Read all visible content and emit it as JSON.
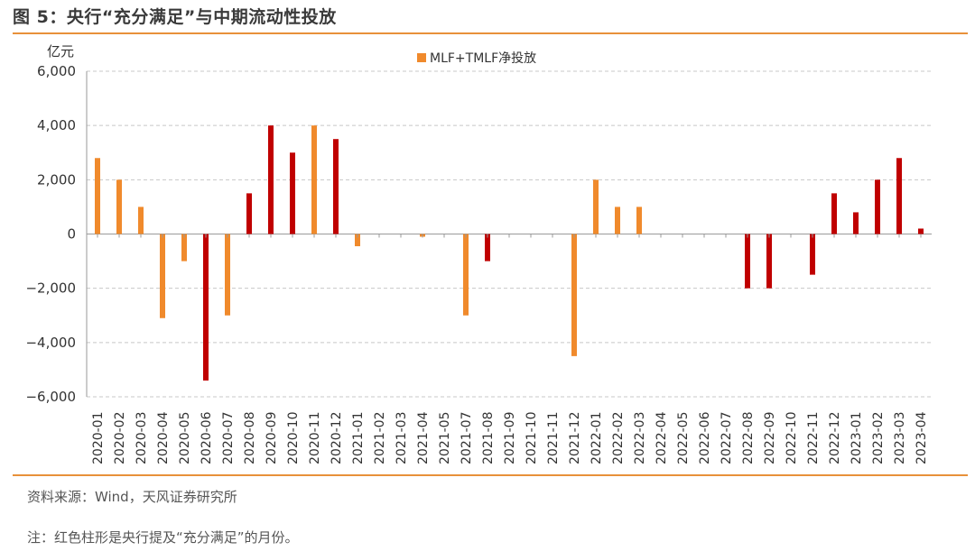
{
  "figure": {
    "title": "图 5：央行“充分满足”与中期流动性投放",
    "source": "资料来源：Wind，天风证券研究所",
    "note": "注：红色柱形是央行提及“充分满足”的月份。"
  },
  "colors": {
    "orange": "#f08a2c",
    "red": "#c00000",
    "rule": "#e8913a",
    "grid": "#c8c8c8"
  },
  "chart_data": {
    "type": "bar",
    "unit_label": "亿元",
    "legend": "MLF+TMLF净投放",
    "ylim": [
      -6000,
      6000
    ],
    "yticks": [
      6000,
      4000,
      2000,
      0,
      -2000,
      -4000,
      -6000
    ],
    "ytick_labels": [
      "6,000",
      "4,000",
      "2,000",
      "0",
      "−2,000",
      "−4,000",
      "−6,000"
    ],
    "categories": [
      "2020-01",
      "2020-02",
      "2020-03",
      "2020-04",
      "2020-05",
      "2020-06",
      "2020-07",
      "2020-08",
      "2020-09",
      "2020-10",
      "2020-11",
      "2020-12",
      "2021-01",
      "2021-02",
      "2021-03",
      "2021-04",
      "2021-05",
      "2021-07",
      "2021-08",
      "2021-09",
      "2021-10",
      "2021-11",
      "2021-12",
      "2022-01",
      "2022-02",
      "2022-03",
      "2022-04",
      "2022-05",
      "2022-06",
      "2022-07",
      "2022-08",
      "2022-09",
      "2022-10",
      "2022-11",
      "2022-12",
      "2023-01",
      "2023-02",
      "2023-03",
      "2023-04"
    ],
    "values": [
      2800,
      2000,
      1000,
      -3100,
      -1000,
      -5400,
      -3000,
      1500,
      4000,
      3000,
      4000,
      3500,
      -450,
      0,
      0,
      -100,
      0,
      -3000,
      -1000,
      0,
      0,
      0,
      -4500,
      2000,
      1000,
      1000,
      0,
      0,
      0,
      0,
      -2000,
      -2000,
      0,
      -1500,
      1500,
      800,
      2000,
      2800,
      200
    ],
    "highlight": [
      false,
      false,
      false,
      false,
      false,
      true,
      false,
      true,
      true,
      true,
      false,
      true,
      false,
      false,
      false,
      false,
      false,
      false,
      true,
      false,
      false,
      false,
      false,
      false,
      false,
      false,
      false,
      false,
      false,
      false,
      true,
      true,
      false,
      true,
      true,
      true,
      true,
      true,
      true
    ]
  }
}
